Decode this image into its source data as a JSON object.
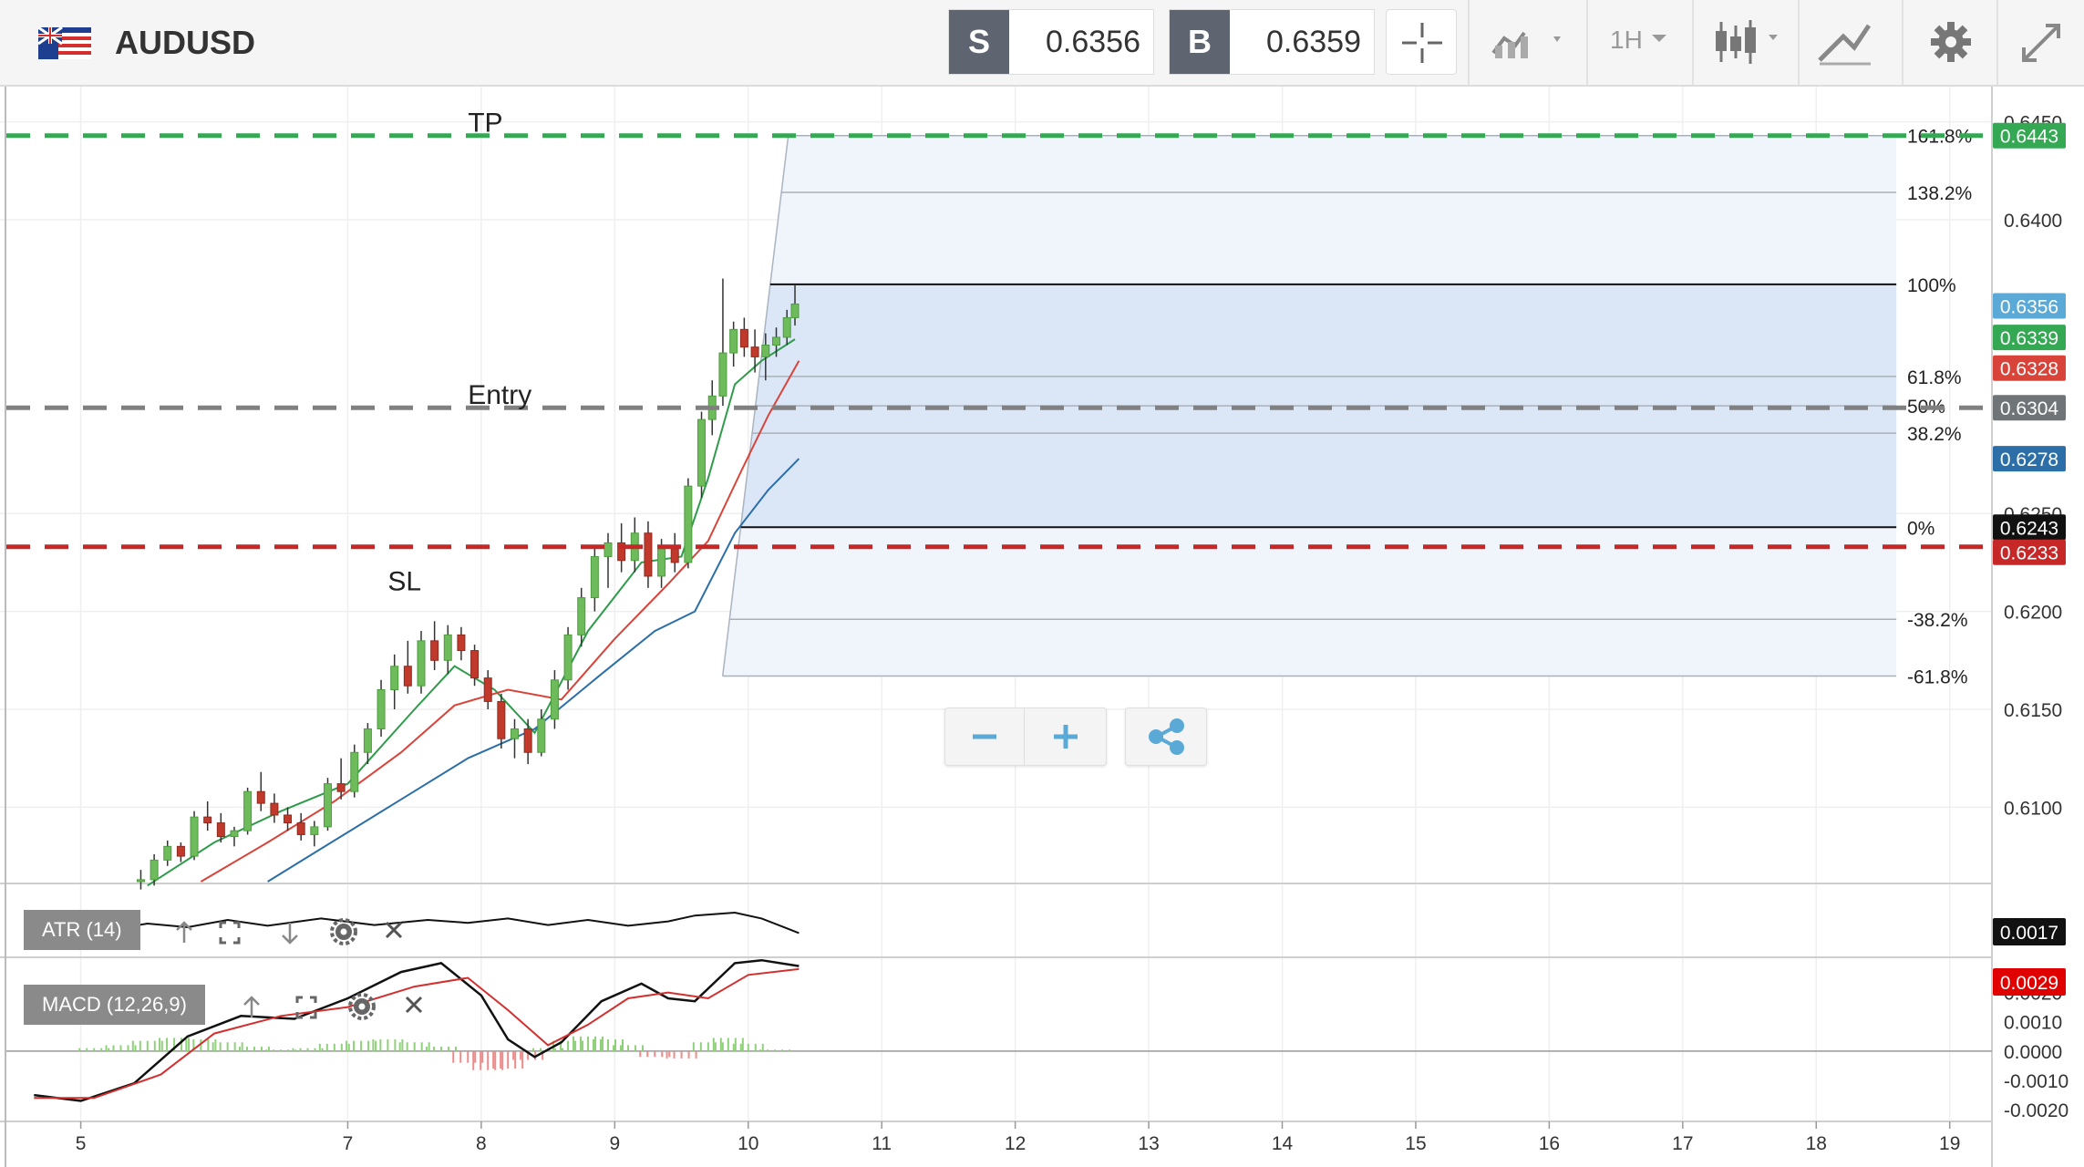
{
  "header": {
    "symbol": "AUDUSD",
    "sell": {
      "tag": "S",
      "price": "0.6356"
    },
    "buy": {
      "tag": "B",
      "price": "0.6359"
    },
    "timeframe": "1H",
    "icons": [
      "flag-au-us-icon",
      "crosshair-icon",
      "chart-type-icon",
      "timeframe-dropdown",
      "indicators-icon",
      "drawing-tools-icon",
      "gear-icon",
      "fullscreen-icon"
    ]
  },
  "colors": {
    "candle_up": "#6dbb5b",
    "candle_down": "#c0392b",
    "tp_line": "#34a853",
    "entry_line": "#808080",
    "sl_line": "#c62828",
    "ma_fast": "#2e9c4a",
    "ma_mid": "#d9443a",
    "ma_slow": "#2c6fa8",
    "fib_fill": "#dce8f7"
  },
  "chart_data": {
    "type": "candlestick",
    "symbol": "AUDUSD",
    "timeframe": "1H",
    "x_ticks": [
      "5",
      "7",
      "8",
      "9",
      "10",
      "11",
      "12",
      "13",
      "14",
      "15",
      "16",
      "17",
      "18",
      "19"
    ],
    "x_range": [
      4.6,
      19.2
    ],
    "y_ticks": [
      "0.6450",
      "0.6400",
      "0.6250",
      "0.6200",
      "0.6150",
      "0.6100"
    ],
    "y_range": [
      0.6062,
      0.6468
    ],
    "price_labels": [
      {
        "text": "0.6443",
        "value": 0.6443,
        "color": "#34a853"
      },
      {
        "text": "0.6356",
        "value": 0.6356,
        "color": "#5aa9d6"
      },
      {
        "text": "0.6339",
        "value": 0.6339,
        "color": "#34a853"
      },
      {
        "text": "0.6328",
        "value": 0.6328,
        "color": "#d9443a"
      },
      {
        "text": "0.6304",
        "value": 0.6304,
        "color": "#6f7478"
      },
      {
        "text": "0.6278",
        "value": 0.6278,
        "color": "#2c6fa8"
      },
      {
        "text": "0.6243",
        "value": 0.6243,
        "color": "#111111"
      },
      {
        "text": "0.6233",
        "value": 0.6233,
        "color": "#c62828"
      }
    ],
    "trade_levels": [
      {
        "label": "TP",
        "value": 0.6443,
        "label_x": 7.9
      },
      {
        "label": "Entry",
        "value": 0.6304,
        "label_x": 7.9
      },
      {
        "label": "SL",
        "value": 0.6233,
        "label_x": 7.3
      }
    ],
    "fibonacci": {
      "start_x": 10.3,
      "end_x": 18.6,
      "levels": [
        {
          "label": "161.8%",
          "value": 0.6443
        },
        {
          "label": "138.2%",
          "value": 0.6414
        },
        {
          "label": "100%",
          "value": 0.6367
        },
        {
          "label": "61.8%",
          "value": 0.632
        },
        {
          "label": "50%",
          "value": 0.6305
        },
        {
          "label": "38.2%",
          "value": 0.6291
        },
        {
          "label": "0%",
          "value": 0.6243
        },
        {
          "label": "-38.2%",
          "value": 0.6196
        },
        {
          "label": "-61.8%",
          "value": 0.6167
        }
      ]
    },
    "candles": [
      {
        "x": 5.45,
        "o": 0.6062,
        "h": 0.6068,
        "l": 0.6058,
        "c": 0.6063
      },
      {
        "x": 5.55,
        "o": 0.6063,
        "h": 0.6076,
        "l": 0.606,
        "c": 0.6073
      },
      {
        "x": 5.65,
        "o": 0.6073,
        "h": 0.6083,
        "l": 0.607,
        "c": 0.608
      },
      {
        "x": 5.75,
        "o": 0.608,
        "h": 0.6082,
        "l": 0.6072,
        "c": 0.6075
      },
      {
        "x": 5.85,
        "o": 0.6075,
        "h": 0.6098,
        "l": 0.6073,
        "c": 0.6095
      },
      {
        "x": 5.95,
        "o": 0.6095,
        "h": 0.6103,
        "l": 0.6088,
        "c": 0.6092
      },
      {
        "x": 6.05,
        "o": 0.6092,
        "h": 0.6097,
        "l": 0.6082,
        "c": 0.6085
      },
      {
        "x": 6.15,
        "o": 0.6085,
        "h": 0.609,
        "l": 0.608,
        "c": 0.6088
      },
      {
        "x": 6.25,
        "o": 0.6088,
        "h": 0.611,
        "l": 0.6086,
        "c": 0.6108
      },
      {
        "x": 6.35,
        "o": 0.6108,
        "h": 0.6118,
        "l": 0.6098,
        "c": 0.6102
      },
      {
        "x": 6.45,
        "o": 0.6102,
        "h": 0.6107,
        "l": 0.6092,
        "c": 0.6096
      },
      {
        "x": 6.55,
        "o": 0.6096,
        "h": 0.61,
        "l": 0.6088,
        "c": 0.6092
      },
      {
        "x": 6.65,
        "o": 0.6092,
        "h": 0.6097,
        "l": 0.6083,
        "c": 0.6086
      },
      {
        "x": 6.75,
        "o": 0.6086,
        "h": 0.6093,
        "l": 0.608,
        "c": 0.609
      },
      {
        "x": 6.85,
        "o": 0.609,
        "h": 0.6115,
        "l": 0.6088,
        "c": 0.6112
      },
      {
        "x": 6.95,
        "o": 0.6112,
        "h": 0.6125,
        "l": 0.6104,
        "c": 0.6108
      },
      {
        "x": 7.05,
        "o": 0.6108,
        "h": 0.6132,
        "l": 0.6105,
        "c": 0.6128
      },
      {
        "x": 7.15,
        "o": 0.6128,
        "h": 0.6143,
        "l": 0.6122,
        "c": 0.614
      },
      {
        "x": 7.25,
        "o": 0.614,
        "h": 0.6165,
        "l": 0.6136,
        "c": 0.616
      },
      {
        "x": 7.35,
        "o": 0.616,
        "h": 0.6178,
        "l": 0.615,
        "c": 0.6172
      },
      {
        "x": 7.45,
        "o": 0.6172,
        "h": 0.6185,
        "l": 0.6158,
        "c": 0.6162
      },
      {
        "x": 7.55,
        "o": 0.6162,
        "h": 0.619,
        "l": 0.6158,
        "c": 0.6185
      },
      {
        "x": 7.65,
        "o": 0.6185,
        "h": 0.6195,
        "l": 0.617,
        "c": 0.6175
      },
      {
        "x": 7.75,
        "o": 0.6175,
        "h": 0.6193,
        "l": 0.6168,
        "c": 0.6188
      },
      {
        "x": 7.85,
        "o": 0.6188,
        "h": 0.6192,
        "l": 0.6175,
        "c": 0.618
      },
      {
        "x": 7.95,
        "o": 0.618,
        "h": 0.6183,
        "l": 0.6162,
        "c": 0.6166
      },
      {
        "x": 8.05,
        "o": 0.6166,
        "h": 0.617,
        "l": 0.615,
        "c": 0.6154
      },
      {
        "x": 8.15,
        "o": 0.6154,
        "h": 0.6158,
        "l": 0.613,
        "c": 0.6135
      },
      {
        "x": 8.25,
        "o": 0.6135,
        "h": 0.6145,
        "l": 0.6125,
        "c": 0.614
      },
      {
        "x": 8.35,
        "o": 0.614,
        "h": 0.6145,
        "l": 0.6122,
        "c": 0.6128
      },
      {
        "x": 8.45,
        "o": 0.6128,
        "h": 0.615,
        "l": 0.6126,
        "c": 0.6145
      },
      {
        "x": 8.55,
        "o": 0.6145,
        "h": 0.617,
        "l": 0.614,
        "c": 0.6165
      },
      {
        "x": 8.65,
        "o": 0.6165,
        "h": 0.6192,
        "l": 0.616,
        "c": 0.6188
      },
      {
        "x": 8.75,
        "o": 0.6188,
        "h": 0.6212,
        "l": 0.6182,
        "c": 0.6207
      },
      {
        "x": 8.85,
        "o": 0.6207,
        "h": 0.6232,
        "l": 0.62,
        "c": 0.6228
      },
      {
        "x": 8.95,
        "o": 0.6228,
        "h": 0.624,
        "l": 0.6212,
        "c": 0.6235
      },
      {
        "x": 9.05,
        "o": 0.6235,
        "h": 0.6245,
        "l": 0.622,
        "c": 0.6226
      },
      {
        "x": 9.15,
        "o": 0.6226,
        "h": 0.6248,
        "l": 0.622,
        "c": 0.624
      },
      {
        "x": 9.25,
        "o": 0.624,
        "h": 0.6246,
        "l": 0.6212,
        "c": 0.6218
      },
      {
        "x": 9.35,
        "o": 0.6218,
        "h": 0.6237,
        "l": 0.6212,
        "c": 0.6232
      },
      {
        "x": 9.45,
        "o": 0.6232,
        "h": 0.624,
        "l": 0.622,
        "c": 0.6225
      },
      {
        "x": 9.55,
        "o": 0.6225,
        "h": 0.6268,
        "l": 0.6222,
        "c": 0.6264
      },
      {
        "x": 9.65,
        "o": 0.6264,
        "h": 0.6302,
        "l": 0.6258,
        "c": 0.6298
      },
      {
        "x": 9.73,
        "o": 0.6298,
        "h": 0.6318,
        "l": 0.629,
        "c": 0.631
      },
      {
        "x": 9.81,
        "o": 0.631,
        "h": 0.637,
        "l": 0.6305,
        "c": 0.6332
      },
      {
        "x": 9.89,
        "o": 0.6332,
        "h": 0.6348,
        "l": 0.6325,
        "c": 0.6344
      },
      {
        "x": 9.97,
        "o": 0.6344,
        "h": 0.635,
        "l": 0.633,
        "c": 0.6335
      },
      {
        "x": 10.05,
        "o": 0.6335,
        "h": 0.6344,
        "l": 0.6322,
        "c": 0.633
      },
      {
        "x": 10.13,
        "o": 0.633,
        "h": 0.6342,
        "l": 0.6318,
        "c": 0.6336
      },
      {
        "x": 10.21,
        "o": 0.6336,
        "h": 0.6345,
        "l": 0.633,
        "c": 0.634
      },
      {
        "x": 10.29,
        "o": 0.634,
        "h": 0.6354,
        "l": 0.6336,
        "c": 0.635
      },
      {
        "x": 10.35,
        "o": 0.635,
        "h": 0.6367,
        "l": 0.6346,
        "c": 0.6357
      }
    ],
    "moving_averages": [
      {
        "color": "#2e9c4a",
        "points": [
          [
            5.5,
            0.606
          ],
          [
            6.0,
            0.6082
          ],
          [
            6.5,
            0.6098
          ],
          [
            7.0,
            0.6112
          ],
          [
            7.5,
            0.615
          ],
          [
            7.8,
            0.6172
          ],
          [
            8.1,
            0.616
          ],
          [
            8.4,
            0.6138
          ],
          [
            8.8,
            0.619
          ],
          [
            9.2,
            0.6225
          ],
          [
            9.5,
            0.6228
          ],
          [
            9.7,
            0.6268
          ],
          [
            9.9,
            0.6316
          ],
          [
            10.1,
            0.6328
          ],
          [
            10.35,
            0.6339
          ]
        ]
      },
      {
        "color": "#d9443a",
        "points": [
          [
            5.9,
            0.6062
          ],
          [
            6.4,
            0.6082
          ],
          [
            6.9,
            0.6103
          ],
          [
            7.4,
            0.6128
          ],
          [
            7.8,
            0.6152
          ],
          [
            8.2,
            0.616
          ],
          [
            8.6,
            0.6155
          ],
          [
            9.0,
            0.6186
          ],
          [
            9.4,
            0.6214
          ],
          [
            9.7,
            0.6236
          ],
          [
            9.95,
            0.6272
          ],
          [
            10.15,
            0.63
          ],
          [
            10.38,
            0.6328
          ]
        ]
      },
      {
        "color": "#2c6fa8",
        "points": [
          [
            6.4,
            0.6062
          ],
          [
            6.9,
            0.6083
          ],
          [
            7.4,
            0.6104
          ],
          [
            7.9,
            0.6125
          ],
          [
            8.4,
            0.614
          ],
          [
            8.9,
            0.6168
          ],
          [
            9.3,
            0.619
          ],
          [
            9.6,
            0.62
          ],
          [
            9.9,
            0.624
          ],
          [
            10.15,
            0.6262
          ],
          [
            10.38,
            0.6278
          ]
        ]
      }
    ],
    "atr": {
      "label": "ATR (14)",
      "value": "0.0017",
      "points": [
        [
          4.65,
          0.62
        ],
        [
          4.9,
          0.58
        ],
        [
          5.2,
          0.64
        ],
        [
          5.5,
          0.55
        ],
        [
          5.8,
          0.6
        ],
        [
          6.1,
          0.5
        ],
        [
          6.4,
          0.58
        ],
        [
          6.8,
          0.48
        ],
        [
          7.2,
          0.57
        ],
        [
          7.6,
          0.5
        ],
        [
          7.9,
          0.54
        ],
        [
          8.2,
          0.48
        ],
        [
          8.5,
          0.57
        ],
        [
          8.8,
          0.5
        ],
        [
          9.1,
          0.58
        ],
        [
          9.4,
          0.52
        ],
        [
          9.6,
          0.44
        ],
        [
          9.9,
          0.4
        ],
        [
          10.1,
          0.48
        ],
        [
          10.38,
          0.68
        ]
      ]
    },
    "macd": {
      "label": "MACD (12,26,9)",
      "value": "0.0029",
      "y_ticks": [
        "0.0020",
        "0.0010",
        "0.0000",
        "-0.0010",
        "-0.0020"
      ],
      "y_range": [
        -0.0024,
        0.0032
      ],
      "macd_line": [
        [
          4.65,
          -0.0015
        ],
        [
          5.0,
          -0.0017
        ],
        [
          5.4,
          -0.0011
        ],
        [
          5.8,
          0.0005
        ],
        [
          6.2,
          0.0012
        ],
        [
          6.6,
          0.0011
        ],
        [
          7.0,
          0.0018
        ],
        [
          7.4,
          0.0027
        ],
        [
          7.7,
          0.003
        ],
        [
          8.0,
          0.0019
        ],
        [
          8.2,
          0.0004
        ],
        [
          8.4,
          -0.0002
        ],
        [
          8.6,
          0.0003
        ],
        [
          8.9,
          0.0017
        ],
        [
          9.2,
          0.0023
        ],
        [
          9.4,
          0.0018
        ],
        [
          9.6,
          0.0017
        ],
        [
          9.9,
          0.003
        ],
        [
          10.1,
          0.0031
        ],
        [
          10.38,
          0.0029
        ]
      ],
      "signal_line": [
        [
          4.65,
          -0.0016
        ],
        [
          5.1,
          -0.0016
        ],
        [
          5.6,
          -0.0008
        ],
        [
          6.0,
          0.0006
        ],
        [
          6.5,
          0.0012
        ],
        [
          7.0,
          0.0015
        ],
        [
          7.5,
          0.0022
        ],
        [
          7.9,
          0.0025
        ],
        [
          8.2,
          0.0014
        ],
        [
          8.5,
          0.0002
        ],
        [
          8.8,
          0.0009
        ],
        [
          9.1,
          0.0018
        ],
        [
          9.4,
          0.002
        ],
        [
          9.7,
          0.0018
        ],
        [
          10.0,
          0.0026
        ],
        [
          10.38,
          0.0028
        ]
      ],
      "histogram": [
        [
          5.1,
          0.0001
        ],
        [
          5.3,
          0.0002
        ],
        [
          5.5,
          0.00035
        ],
        [
          5.7,
          0.00045
        ],
        [
          5.9,
          0.0004
        ],
        [
          6.1,
          0.0003
        ],
        [
          6.3,
          0.00015
        ],
        [
          6.5,
          5e-05
        ],
        [
          6.7,
          0.0001
        ],
        [
          6.9,
          0.00025
        ],
        [
          7.1,
          0.00035
        ],
        [
          7.3,
          0.0004
        ],
        [
          7.5,
          0.0003
        ],
        [
          7.7,
          0.00015
        ],
        [
          7.9,
          -0.0004
        ],
        [
          8.05,
          -0.00065
        ],
        [
          8.2,
          -0.0006
        ],
        [
          8.35,
          -0.0003
        ],
        [
          8.5,
          0.0001
        ],
        [
          8.65,
          0.00035
        ],
        [
          8.8,
          0.0005
        ],
        [
          8.95,
          0.0004
        ],
        [
          9.1,
          0.0002
        ],
        [
          9.3,
          -0.0002
        ],
        [
          9.5,
          -0.00025
        ],
        [
          9.7,
          0.0003
        ],
        [
          9.85,
          0.00045
        ],
        [
          10.0,
          0.00025
        ],
        [
          10.2,
          5e-05
        ]
      ]
    }
  }
}
